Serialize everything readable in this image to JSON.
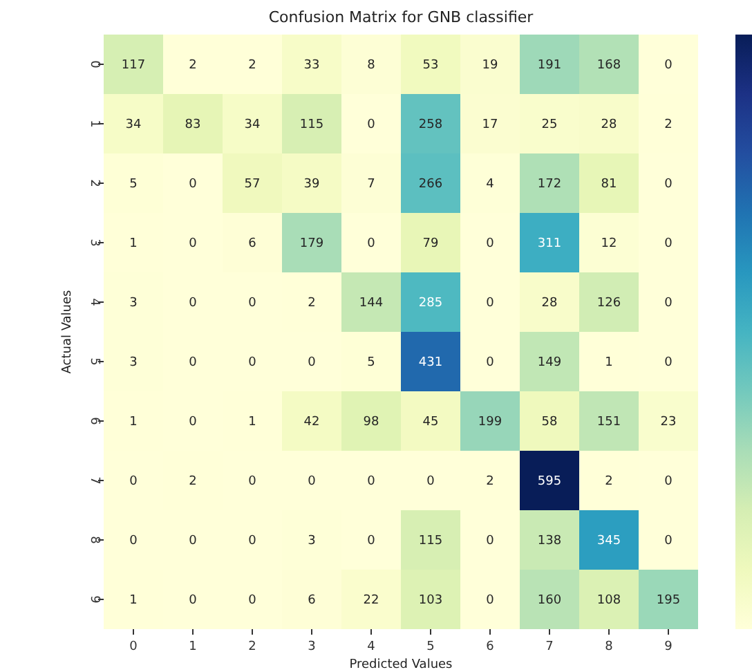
{
  "chart_data": {
    "type": "heatmap",
    "title": "Confusion Matrix for GNB classifier",
    "xlabel": "Predicted Values",
    "ylabel": "Actual Values",
    "categories": [
      "0",
      "1",
      "2",
      "3",
      "4",
      "5",
      "6",
      "7",
      "8",
      "9"
    ],
    "y_categories": [
      "0",
      "1",
      "2",
      "3",
      "4",
      "5",
      "6",
      "7",
      "8",
      "9"
    ],
    "cells": [
      [
        117,
        2,
        2,
        33,
        8,
        53,
        19,
        191,
        168,
        0
      ],
      [
        34,
        83,
        34,
        115,
        0,
        258,
        17,
        25,
        28,
        2
      ],
      [
        5,
        0,
        57,
        39,
        7,
        266,
        4,
        172,
        81,
        0
      ],
      [
        1,
        0,
        6,
        179,
        0,
        79,
        0,
        311,
        12,
        0
      ],
      [
        3,
        0,
        0,
        2,
        144,
        285,
        0,
        28,
        126,
        0
      ],
      [
        3,
        0,
        0,
        0,
        5,
        431,
        0,
        149,
        1,
        0
      ],
      [
        1,
        0,
        1,
        42,
        98,
        45,
        199,
        58,
        151,
        23
      ],
      [
        0,
        2,
        0,
        0,
        0,
        0,
        2,
        595,
        2,
        0
      ],
      [
        0,
        0,
        0,
        3,
        0,
        115,
        0,
        138,
        345,
        0
      ],
      [
        1,
        0,
        0,
        6,
        22,
        103,
        0,
        160,
        108,
        195
      ]
    ],
    "data_labels": true
  }
}
